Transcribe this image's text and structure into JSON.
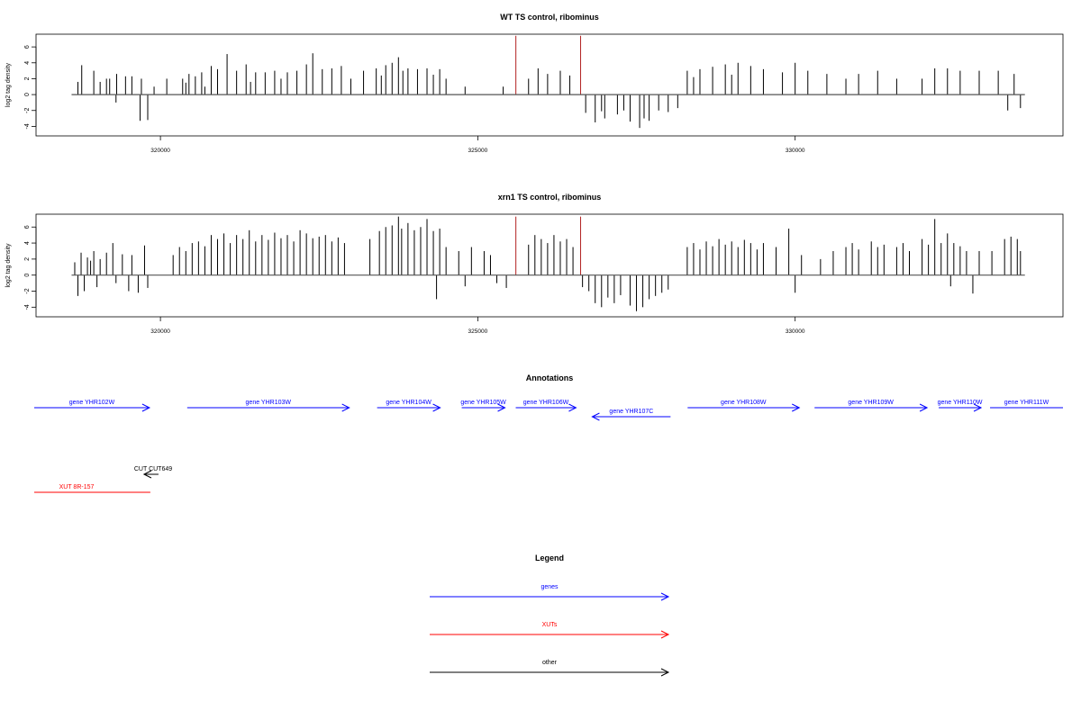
{
  "chart_data": [
    {
      "type": "bar",
      "title": "WT TS control, ribominus",
      "ylabel": "log2 tag density",
      "xlabel": "",
      "xlim": [
        318040,
        334220
      ],
      "ylim": [
        -5.2,
        7.6
      ],
      "xticks": [
        320000,
        325000,
        330000
      ],
      "xtick_labels": [
        "320000",
        "325000",
        "330000"
      ],
      "yticks": [
        -4,
        -2,
        0,
        2,
        4,
        6
      ],
      "ytick_labels": [
        "-4",
        "-2",
        "0",
        "2",
        "4",
        "6"
      ],
      "bar_color": "#000000",
      "highlight_color": "#b22222",
      "highlights": [
        [
          325600,
          7.4
        ],
        [
          326620,
          7.4
        ]
      ],
      "bars": [
        [
          318700,
          1.6
        ],
        [
          318760,
          3.7
        ],
        [
          318950,
          3.0
        ],
        [
          319050,
          1.6
        ],
        [
          319150,
          2.0
        ],
        [
          319200,
          2.0
        ],
        [
          319300,
          -1.0
        ],
        [
          319310,
          2.6
        ],
        [
          319450,
          2.3
        ],
        [
          319550,
          2.3
        ],
        [
          319680,
          -3.3
        ],
        [
          319700,
          2.0
        ],
        [
          319800,
          -3.2
        ],
        [
          319900,
          1.0
        ],
        [
          320100,
          2.0
        ],
        [
          320350,
          2.0
        ],
        [
          320400,
          1.5
        ],
        [
          320450,
          2.6
        ],
        [
          320550,
          2.3
        ],
        [
          320650,
          2.8
        ],
        [
          320700,
          1.0
        ],
        [
          320800,
          3.6
        ],
        [
          320900,
          3.2
        ],
        [
          321050,
          5.1
        ],
        [
          321200,
          3.0
        ],
        [
          321350,
          3.8
        ],
        [
          321420,
          1.6
        ],
        [
          321500,
          2.8
        ],
        [
          321650,
          2.8
        ],
        [
          321800,
          3.0
        ],
        [
          321900,
          2.0
        ],
        [
          322000,
          2.8
        ],
        [
          322150,
          3.0
        ],
        [
          322300,
          3.8
        ],
        [
          322400,
          5.2
        ],
        [
          322550,
          3.2
        ],
        [
          322700,
          3.3
        ],
        [
          322850,
          3.6
        ],
        [
          323000,
          2.0
        ],
        [
          323200,
          3.0
        ],
        [
          323400,
          3.3
        ],
        [
          323480,
          2.4
        ],
        [
          323550,
          3.7
        ],
        [
          323650,
          4.0
        ],
        [
          323750,
          4.7
        ],
        [
          323820,
          3.0
        ],
        [
          323900,
          3.3
        ],
        [
          324050,
          3.2
        ],
        [
          324200,
          3.3
        ],
        [
          324300,
          2.5
        ],
        [
          324400,
          3.2
        ],
        [
          324500,
          2.0
        ],
        [
          324800,
          1.0
        ],
        [
          325400,
          1.0
        ],
        [
          325800,
          2.0
        ],
        [
          325950,
          3.3
        ],
        [
          326100,
          2.6
        ],
        [
          326300,
          3.0
        ],
        [
          326450,
          2.4
        ],
        [
          326700,
          -2.3
        ],
        [
          326850,
          -3.5
        ],
        [
          326950,
          -2.1
        ],
        [
          327000,
          -3.0
        ],
        [
          327200,
          -2.5
        ],
        [
          327300,
          -2.0
        ],
        [
          327400,
          -3.4
        ],
        [
          327550,
          -4.2
        ],
        [
          327620,
          -3.0
        ],
        [
          327700,
          -3.3
        ],
        [
          327850,
          -2.0
        ],
        [
          328000,
          -2.2
        ],
        [
          328150,
          -1.7
        ],
        [
          328300,
          3.0
        ],
        [
          328400,
          2.2
        ],
        [
          328500,
          3.2
        ],
        [
          328700,
          3.5
        ],
        [
          328900,
          3.8
        ],
        [
          329000,
          2.5
        ],
        [
          329100,
          4.0
        ],
        [
          329300,
          3.6
        ],
        [
          329500,
          3.2
        ],
        [
          329800,
          2.8
        ],
        [
          330000,
          4.0
        ],
        [
          330200,
          3.0
        ],
        [
          330500,
          2.6
        ],
        [
          330800,
          2.0
        ],
        [
          331000,
          2.6
        ],
        [
          331300,
          3.0
        ],
        [
          331600,
          2.0
        ],
        [
          332000,
          2.0
        ],
        [
          332200,
          3.3
        ],
        [
          332400,
          3.3
        ],
        [
          332600,
          3.0
        ],
        [
          332900,
          3.0
        ],
        [
          333200,
          3.0
        ],
        [
          333350,
          -2.0
        ],
        [
          333450,
          2.6
        ],
        [
          333550,
          -1.7
        ]
      ]
    },
    {
      "type": "bar",
      "title": "xrn1 TS control, ribominus",
      "ylabel": "log2 tag density",
      "xlabel": "",
      "xlim": [
        318040,
        334220
      ],
      "ylim": [
        -5.2,
        7.6
      ],
      "xticks": [
        320000,
        325000,
        330000
      ],
      "xtick_labels": [
        "320000",
        "325000",
        "330000"
      ],
      "yticks": [
        -4,
        -2,
        0,
        2,
        4,
        6
      ],
      "ytick_labels": [
        "-4",
        "-2",
        "0",
        "2",
        "4",
        "6"
      ],
      "bar_color": "#000000",
      "highlight_color": "#b22222",
      "highlights": [
        [
          325600,
          7.3
        ],
        [
          326620,
          7.3
        ]
      ],
      "bars": [
        [
          318650,
          1.6
        ],
        [
          318700,
          -2.6
        ],
        [
          318750,
          2.8
        ],
        [
          318800,
          -2.0
        ],
        [
          318850,
          2.2
        ],
        [
          318900,
          1.8
        ],
        [
          318950,
          3.0
        ],
        [
          319000,
          -1.5
        ],
        [
          319050,
          2.0
        ],
        [
          319150,
          2.8
        ],
        [
          319250,
          4.0
        ],
        [
          319300,
          -1.0
        ],
        [
          319400,
          2.6
        ],
        [
          319500,
          -2.0
        ],
        [
          319550,
          2.5
        ],
        [
          319650,
          -2.2
        ],
        [
          319750,
          3.7
        ],
        [
          319800,
          -1.6
        ],
        [
          320200,
          2.5
        ],
        [
          320300,
          3.5
        ],
        [
          320400,
          3.0
        ],
        [
          320500,
          4.0
        ],
        [
          320600,
          4.2
        ],
        [
          320700,
          3.6
        ],
        [
          320800,
          5.0
        ],
        [
          320900,
          4.5
        ],
        [
          321000,
          5.2
        ],
        [
          321100,
          4.0
        ],
        [
          321200,
          5.0
        ],
        [
          321300,
          4.5
        ],
        [
          321400,
          5.6
        ],
        [
          321500,
          4.2
        ],
        [
          321600,
          5.0
        ],
        [
          321700,
          4.4
        ],
        [
          321800,
          5.3
        ],
        [
          321900,
          4.6
        ],
        [
          322000,
          5.0
        ],
        [
          322100,
          4.2
        ],
        [
          322200,
          5.6
        ],
        [
          322300,
          5.2
        ],
        [
          322400,
          4.6
        ],
        [
          322500,
          4.8
        ],
        [
          322600,
          5.0
        ],
        [
          322700,
          4.2
        ],
        [
          322800,
          4.7
        ],
        [
          322900,
          4.0
        ],
        [
          323300,
          4.5
        ],
        [
          323450,
          5.5
        ],
        [
          323550,
          6.0
        ],
        [
          323650,
          6.2
        ],
        [
          323750,
          7.3
        ],
        [
          323800,
          5.8
        ],
        [
          323900,
          6.5
        ],
        [
          324000,
          5.6
        ],
        [
          324100,
          6.0
        ],
        [
          324200,
          7.0
        ],
        [
          324300,
          5.5
        ],
        [
          324350,
          -3.0
        ],
        [
          324400,
          5.8
        ],
        [
          324500,
          3.5
        ],
        [
          324700,
          3.0
        ],
        [
          324800,
          -1.4
        ],
        [
          324900,
          3.5
        ],
        [
          325100,
          3.0
        ],
        [
          325200,
          2.5
        ],
        [
          325300,
          -1.0
        ],
        [
          325450,
          -1.6
        ],
        [
          325800,
          3.8
        ],
        [
          325900,
          5.0
        ],
        [
          326000,
          4.5
        ],
        [
          326100,
          4.0
        ],
        [
          326200,
          5.0
        ],
        [
          326300,
          4.2
        ],
        [
          326400,
          4.5
        ],
        [
          326500,
          3.5
        ],
        [
          326650,
          -1.5
        ],
        [
          326750,
          -2.0
        ],
        [
          326850,
          -3.5
        ],
        [
          326950,
          -4.0
        ],
        [
          327050,
          -2.8
        ],
        [
          327150,
          -3.5
        ],
        [
          327250,
          -2.5
        ],
        [
          327400,
          -3.8
        ],
        [
          327500,
          -4.5
        ],
        [
          327600,
          -4.0
        ],
        [
          327700,
          -3.0
        ],
        [
          327800,
          -2.6
        ],
        [
          327900,
          -2.2
        ],
        [
          328000,
          -1.8
        ],
        [
          328300,
          3.5
        ],
        [
          328400,
          4.0
        ],
        [
          328500,
          3.2
        ],
        [
          328600,
          4.2
        ],
        [
          328700,
          3.6
        ],
        [
          328800,
          4.5
        ],
        [
          328900,
          3.8
        ],
        [
          329000,
          4.2
        ],
        [
          329100,
          3.5
        ],
        [
          329200,
          4.4
        ],
        [
          329300,
          4.0
        ],
        [
          329400,
          3.2
        ],
        [
          329500,
          4.0
        ],
        [
          329700,
          3.5
        ],
        [
          329900,
          5.8
        ],
        [
          330000,
          -2.2
        ],
        [
          330100,
          2.5
        ],
        [
          330400,
          2.0
        ],
        [
          330600,
          3.0
        ],
        [
          330800,
          3.5
        ],
        [
          330900,
          4.0
        ],
        [
          331000,
          3.2
        ],
        [
          331200,
          4.2
        ],
        [
          331300,
          3.5
        ],
        [
          331400,
          3.8
        ],
        [
          331600,
          3.5
        ],
        [
          331700,
          4.0
        ],
        [
          331800,
          3.0
        ],
        [
          332000,
          4.5
        ],
        [
          332100,
          3.8
        ],
        [
          332200,
          7.0
        ],
        [
          332300,
          4.0
        ],
        [
          332400,
          5.2
        ],
        [
          332450,
          -1.4
        ],
        [
          332500,
          4.0
        ],
        [
          332600,
          3.6
        ],
        [
          332700,
          3.0
        ],
        [
          332800,
          -2.3
        ],
        [
          332900,
          3.0
        ],
        [
          333100,
          3.0
        ],
        [
          333300,
          4.5
        ],
        [
          333400,
          4.8
        ],
        [
          333500,
          4.5
        ],
        [
          333550,
          3.0
        ]
      ]
    }
  ],
  "annotations": {
    "title": "Annotations",
    "features": [
      {
        "label": "gene YHR102W",
        "start": 317000,
        "end": 319827,
        "strand": "+",
        "track": 0,
        "kind": "gene"
      },
      {
        "label": "gene YHR103W",
        "start": 320422,
        "end": 322975,
        "strand": "+",
        "track": 0,
        "kind": "gene"
      },
      {
        "label": "gene YHR104W",
        "start": 323414,
        "end": 324407,
        "strand": "+",
        "track": 0,
        "kind": "gene"
      },
      {
        "label": "gene YHR105W",
        "start": 324747,
        "end": 325428,
        "strand": "+",
        "track": 0,
        "kind": "gene"
      },
      {
        "label": "gene YHR106W",
        "start": 325598,
        "end": 326548,
        "strand": "+",
        "track": 0,
        "kind": "gene"
      },
      {
        "label": "gene YHR107C",
        "start": 326803,
        "end": 328037,
        "strand": "-",
        "track": 1,
        "kind": "gene"
      },
      {
        "label": "gene YHR108W",
        "start": 328306,
        "end": 330065,
        "strand": "+",
        "track": 0,
        "kind": "gene"
      },
      {
        "label": "gene YHR109W",
        "start": 330306,
        "end": 332078,
        "strand": "+",
        "track": 0,
        "kind": "gene"
      },
      {
        "label": "gene YHR110W",
        "start": 332262,
        "end": 332929,
        "strand": "+",
        "track": 0,
        "kind": "gene"
      },
      {
        "label": "gene YHR111W",
        "start": 333071,
        "end": 334900,
        "strand": "+",
        "track": 0,
        "kind": "gene"
      },
      {
        "label": "CUT CUT649",
        "start": 319742,
        "end": 319969,
        "strand": "-",
        "track": 2,
        "kind": "other"
      },
      {
        "label": "XUT 8R-157",
        "start": 317000,
        "end": 319841,
        "strand": "none",
        "track": 3,
        "kind": "xut"
      }
    ]
  },
  "legend": {
    "title": "Legend",
    "items": [
      {
        "label": "genes",
        "color": "#0000ff"
      },
      {
        "label": "XUTs",
        "color": "#ff0000"
      },
      {
        "label": "other",
        "color": "#000000"
      }
    ]
  },
  "colors": {
    "gene": "#0000ff",
    "xut": "#ff0000",
    "other": "#000000"
  }
}
